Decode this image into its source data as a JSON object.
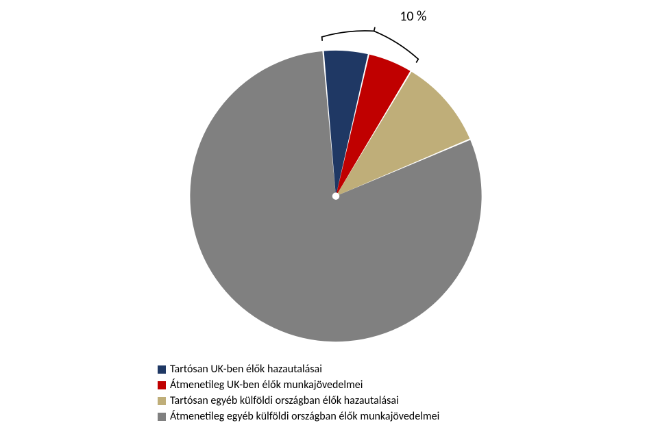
{
  "chart": {
    "type": "pie",
    "background_color": "#ffffff",
    "radius": 244,
    "center_gap_radius": 6,
    "slice_gap_deg": 0.6,
    "start_angle_deg": -5,
    "series": [
      {
        "label": "Tartósan UK-ben élők hazautalásai",
        "value": 5,
        "color": "#1f3864"
      },
      {
        "label": "Átmenetileg UK-ben élők munkajövedelmei",
        "value": 5,
        "color": "#c00000"
      },
      {
        "label": "Tartósan egyéb külföldi országban élők hazautalásai",
        "value": 10,
        "color": "#bfae79"
      },
      {
        "label": "Átmenetileg egyéb külföldi országban élők munkajövedelmei",
        "value": 80,
        "color": "#808080"
      }
    ],
    "callout": {
      "text": "10 %",
      "spans_slices": [
        0,
        1
      ],
      "font_size": 20,
      "bracket_stroke": "#000000",
      "bracket_stroke_width": 2,
      "bracket_offset": 18,
      "bracket_depth": 22,
      "label_offset": 12
    },
    "legend": {
      "font_size": 16,
      "swatch_size": 12,
      "text_color": "#000000"
    }
  }
}
